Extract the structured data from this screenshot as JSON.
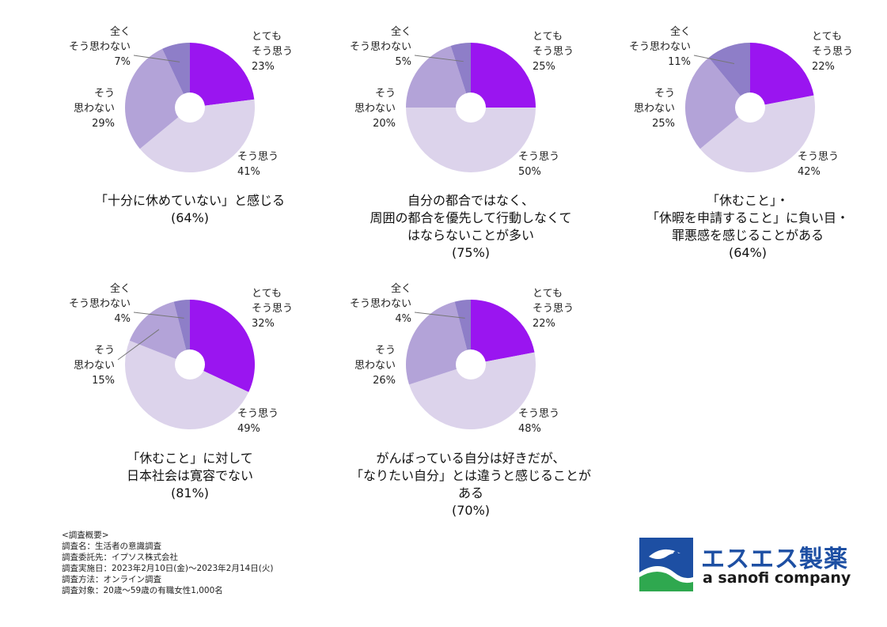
{
  "colors": {
    "strongly_agree": "#9a15f0",
    "agree": "#dcd3eb",
    "disagree": "#b3a3d8",
    "strongly_disagree": "#8e7ec8"
  },
  "chart_data": [
    {
      "type": "pie",
      "subtype": "donut",
      "caption_lines": [
        "「十分に休めていない」と感じる",
        "(64%)"
      ],
      "slices": [
        {
          "key": "strongly_agree",
          "label_lines": [
            "とても",
            "そう思う"
          ],
          "value": 23,
          "value_label": "23%"
        },
        {
          "key": "agree",
          "label_lines": [
            "そう思う"
          ],
          "value": 41,
          "value_label": "41%"
        },
        {
          "key": "disagree",
          "label_lines": [
            "そう",
            "思わない"
          ],
          "value": 29,
          "value_label": "29%"
        },
        {
          "key": "strongly_disagree",
          "label_lines": [
            "全く",
            "そう思わない"
          ],
          "value": 7,
          "value_label": "7%"
        }
      ]
    },
    {
      "type": "pie",
      "subtype": "donut",
      "caption_lines": [
        "自分の都合ではなく、",
        "周囲の都合を優先して行動しなくて",
        "はならないことが多い",
        "(75%)"
      ],
      "slices": [
        {
          "key": "strongly_agree",
          "label_lines": [
            "とても",
            "そう思う"
          ],
          "value": 25,
          "value_label": "25%"
        },
        {
          "key": "agree",
          "label_lines": [
            "そう思う"
          ],
          "value": 50,
          "value_label": "50%"
        },
        {
          "key": "disagree",
          "label_lines": [
            "そう",
            "思わない"
          ],
          "value": 20,
          "value_label": "20%"
        },
        {
          "key": "strongly_disagree",
          "label_lines": [
            "全く",
            "そう思わない"
          ],
          "value": 5,
          "value_label": "5%"
        }
      ]
    },
    {
      "type": "pie",
      "subtype": "donut",
      "caption_lines": [
        "「休むこと」・",
        "「休暇を申請すること」に負い目・",
        "罪悪感を感じることがある",
        "(64%)"
      ],
      "slices": [
        {
          "key": "strongly_agree",
          "label_lines": [
            "とても",
            "そう思う"
          ],
          "value": 22,
          "value_label": "22%"
        },
        {
          "key": "agree",
          "label_lines": [
            "そう思う"
          ],
          "value": 42,
          "value_label": "42%"
        },
        {
          "key": "disagree",
          "label_lines": [
            "そう",
            "思わない"
          ],
          "value": 25,
          "value_label": "25%"
        },
        {
          "key": "strongly_disagree",
          "label_lines": [
            "全く",
            "そう思わない"
          ],
          "value": 11,
          "value_label": "11%"
        }
      ]
    },
    {
      "type": "pie",
      "subtype": "donut",
      "caption_lines": [
        "「休むこと」に対して",
        "日本社会は寛容でない",
        "(81%)"
      ],
      "slices": [
        {
          "key": "strongly_agree",
          "label_lines": [
            "とても",
            "そう思う"
          ],
          "value": 32,
          "value_label": "32%"
        },
        {
          "key": "agree",
          "label_lines": [
            "そう思う"
          ],
          "value": 49,
          "value_label": "49%"
        },
        {
          "key": "disagree",
          "label_lines": [
            "そう",
            "思わない"
          ],
          "value": 15,
          "value_label": "15%"
        },
        {
          "key": "strongly_disagree",
          "label_lines": [
            "全く",
            "そう思わない"
          ],
          "value": 4,
          "value_label": "4%"
        }
      ]
    },
    {
      "type": "pie",
      "subtype": "donut",
      "caption_lines": [
        "がんばっている自分は好きだが、",
        "「なりたい自分」とは違うと感じることが",
        "ある",
        "(70%)"
      ],
      "slices": [
        {
          "key": "strongly_agree",
          "label_lines": [
            "とても",
            "そう思う"
          ],
          "value": 22,
          "value_label": "22%"
        },
        {
          "key": "agree",
          "label_lines": [
            "そう思う"
          ],
          "value": 48,
          "value_label": "48%"
        },
        {
          "key": "disagree",
          "label_lines": [
            "そう",
            "思わない"
          ],
          "value": 26,
          "value_label": "26%"
        },
        {
          "key": "strongly_disagree",
          "label_lines": [
            "全く",
            "そう思わない"
          ],
          "value": 4,
          "value_label": "4%"
        }
      ]
    }
  ],
  "survey": {
    "lines": [
      "<調査概要>",
      "調査名：生活者の意識調査",
      "調査委託先：イプソス株式会社",
      "調査実施日：2023年2月10日(金)～2023年2月14日(火)",
      "調査方法：オンライン調査",
      "調査対象：20歳～59歳の有職女性1,000名"
    ]
  },
  "logo": {
    "jp": "エスエス製薬",
    "en": "a sanofi company"
  }
}
